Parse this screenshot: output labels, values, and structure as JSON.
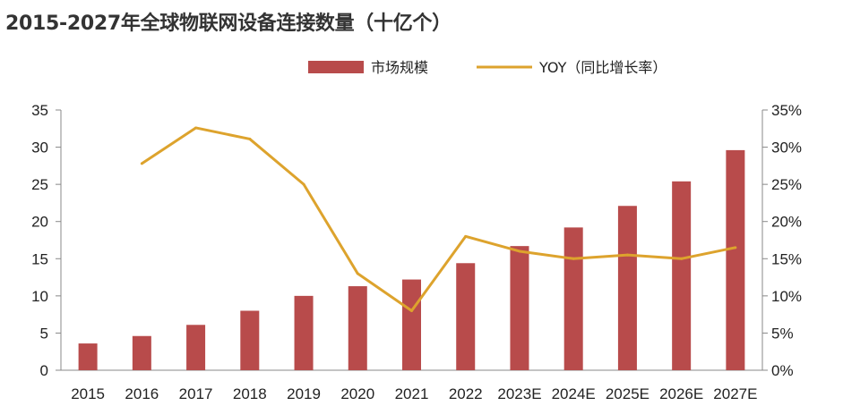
{
  "chart_data": {
    "type": "bar",
    "title": "2015-2027年全球物联网设备连接数量（十亿个）",
    "categories": [
      "2015",
      "2016",
      "2017",
      "2018",
      "2019",
      "2020",
      "2021",
      "2022",
      "2023E",
      "2024E",
      "2025E",
      "2026E",
      "2027E"
    ],
    "series": [
      {
        "name": "市场规模",
        "type": "bar",
        "axis": "left",
        "color": "#B84B4B",
        "values": [
          3.6,
          4.6,
          6.1,
          8.0,
          10.0,
          11.3,
          12.2,
          14.4,
          16.7,
          19.2,
          22.1,
          25.4,
          29.6
        ]
      },
      {
        "name": "YOY（同比增长率）",
        "type": "line",
        "axis": "right",
        "color": "#DDA32D",
        "values": [
          null,
          27.8,
          32.6,
          31.1,
          25.0,
          13.0,
          8.0,
          18.0,
          16.0,
          15.0,
          15.5,
          15.0,
          16.5
        ]
      }
    ],
    "y_left": {
      "min": 0,
      "max": 35,
      "ticks": [
        "0",
        "5",
        "10",
        "15",
        "20",
        "25",
        "30",
        "35"
      ]
    },
    "y_right": {
      "min": 0,
      "max": 35,
      "ticks": [
        "0%",
        "5%",
        "10%",
        "15%",
        "20%",
        "25%",
        "30%",
        "35%"
      ]
    },
    "legend_position": "top-right",
    "grid": false
  }
}
